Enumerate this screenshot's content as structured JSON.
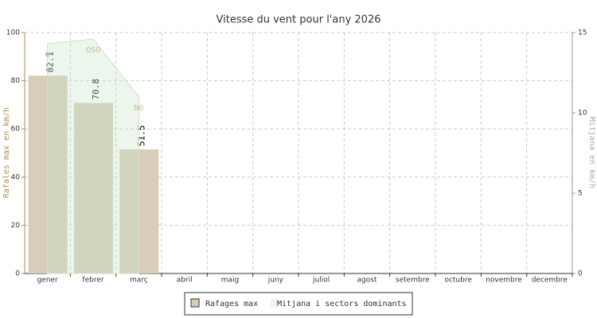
{
  "chart_data": {
    "type": "bar",
    "title": "Vitesse du vent pour l'any 2026",
    "ylabel": "Rafales max en km/h",
    "y2label": "Mitjana en km/h",
    "categories": [
      "gener",
      "febrer",
      "març",
      "abril",
      "maig",
      "juny",
      "juliol",
      "agost",
      "setembre",
      "octubre",
      "novembre",
      "decembre"
    ],
    "ylim": [
      0,
      100
    ],
    "yticks": [
      0,
      20,
      40,
      60,
      80,
      100
    ],
    "y2lim": [
      0,
      15
    ],
    "y2ticks": [
      0,
      5,
      10,
      15
    ],
    "grid": true,
    "legend": "bottom",
    "series": [
      {
        "name": "Rafages max",
        "color": "#d8cdb9",
        "values": [
          82.1,
          70.8,
          51.5,
          null,
          null,
          null,
          null,
          null,
          null,
          null,
          null,
          null
        ]
      },
      {
        "name": "Mitjana i sectors dominants",
        "type": "area",
        "axis": "y2",
        "color": "#c9e4c9",
        "values": [
          14.3,
          14.6,
          11.0,
          null,
          null,
          null,
          null,
          null,
          null,
          null,
          null,
          null
        ],
        "sectors": [
          "O",
          "OSO",
          "NO",
          null,
          null,
          null,
          null,
          null,
          null,
          null,
          null,
          null
        ]
      }
    ]
  }
}
